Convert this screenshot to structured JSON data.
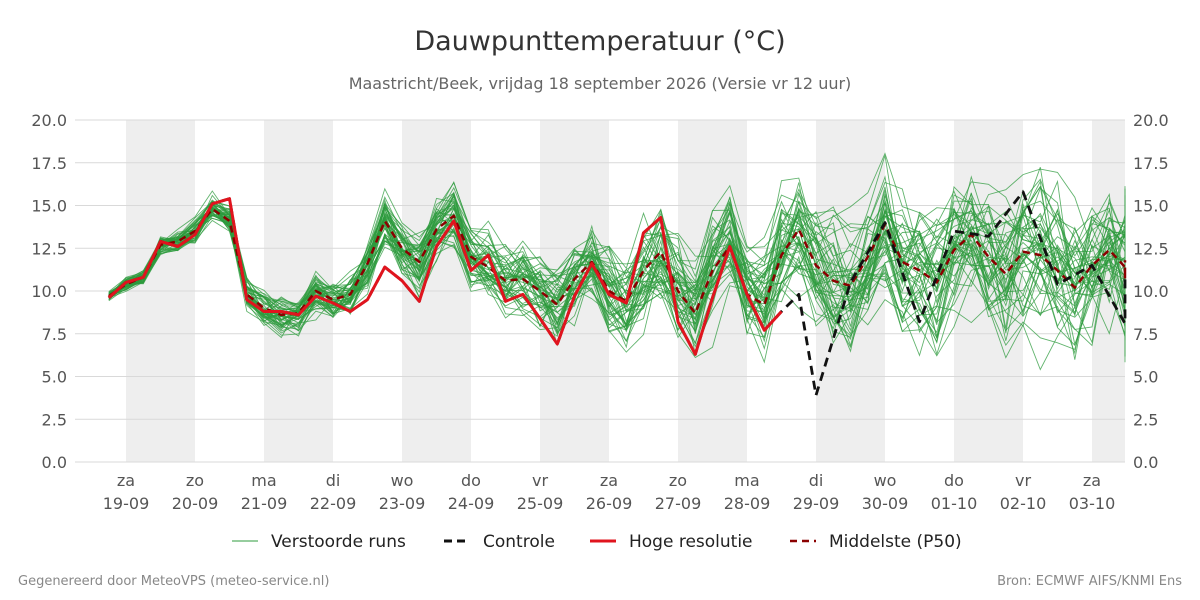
{
  "chart_data": {
    "type": "line",
    "title": "Dauwpunttemperatuur (°C)",
    "subtitle": "Maastricht/Beek, vrijdag 18 september 2026 (Versie vr 12 uur)",
    "ylim": [
      0,
      20
    ],
    "yticks": [
      "0.0",
      "2.5",
      "5.0",
      "7.5",
      "10.0",
      "12.5",
      "15.0",
      "17.5",
      "20.0"
    ],
    "xlim": [
      -0.1,
      15.0
    ],
    "day_ticks": [
      {
        "day": "za",
        "date": "19-09"
      },
      {
        "day": "zo",
        "date": "20-09"
      },
      {
        "day": "ma",
        "date": "21-09"
      },
      {
        "day": "di",
        "date": "22-09"
      },
      {
        "day": "wo",
        "date": "23-09"
      },
      {
        "day": "do",
        "date": "24-09"
      },
      {
        "day": "vr",
        "date": "25-09"
      },
      {
        "day": "za",
        "date": "26-09"
      },
      {
        "day": "zo",
        "date": "27-09"
      },
      {
        "day": "ma",
        "date": "28-09"
      },
      {
        "day": "di",
        "date": "29-09"
      },
      {
        "day": "wo",
        "date": "30-09"
      },
      {
        "day": "do",
        "date": "01-10"
      },
      {
        "day": "vr",
        "date": "02-10"
      },
      {
        "day": "za",
        "date": "03-10"
      }
    ],
    "grid": true,
    "legend_position": "bottom",
    "series": [
      {
        "name": "Controle",
        "color": "#111111",
        "style": "dashed",
        "x": [
          -0.25,
          0,
          0.25,
          0.5,
          0.75,
          1.0,
          1.25,
          1.5,
          1.75,
          2.0,
          2.25,
          2.5,
          2.75,
          3.0,
          3.25,
          3.5,
          3.75,
          4.0,
          4.25,
          4.5,
          4.75,
          5.0,
          5.25,
          5.5,
          5.75,
          6.0,
          6.25,
          6.5,
          6.75,
          7.0,
          7.25,
          7.5,
          7.75,
          8.0,
          8.25,
          8.5,
          8.75,
          9.0,
          9.25,
          9.5,
          9.75,
          10.0,
          10.5,
          11.0,
          11.5,
          12.0,
          12.5,
          13.0,
          13.5,
          14.0,
          14.5,
          15.0
        ],
        "values": [
          9.6,
          10.5,
          10.8,
          12.9,
          12.6,
          13.3,
          15.1,
          15.4,
          9.5,
          8.8,
          8.8,
          8.6,
          9.7,
          9.3,
          8.8,
          9.5,
          11.4,
          10.6,
          9.4,
          12.6,
          14.1,
          11.2,
          12.1,
          9.4,
          9.8,
          8.4,
          6.9,
          9.7,
          11.6,
          9.8,
          9.3,
          13.4,
          14.3,
          8.2,
          6.3,
          9.6,
          12.6,
          9.8,
          7.7,
          8.8,
          9.8,
          3.9,
          10.5,
          14.0,
          8.2,
          13.5,
          13.2,
          15.8,
          10.4,
          11.5,
          8.1,
          11.0
        ]
      },
      {
        "name": "Hoge resolutie",
        "color": "#e0141e",
        "style": "solid",
        "x": [
          -0.25,
          0,
          0.25,
          0.5,
          0.75,
          1.0,
          1.25,
          1.5,
          1.75,
          2.0,
          2.25,
          2.5,
          2.75,
          3.0,
          3.25,
          3.5,
          3.75,
          4.0,
          4.25,
          4.5,
          4.75,
          5.0,
          5.25,
          5.5,
          5.75,
          6.0,
          6.25,
          6.5,
          6.75,
          7.0,
          7.25,
          7.5,
          7.75,
          8.0,
          8.25,
          8.5,
          8.75,
          9.0,
          9.25,
          9.5
        ],
        "values": [
          9.6,
          10.5,
          10.8,
          12.9,
          12.6,
          13.3,
          15.1,
          15.4,
          9.5,
          8.8,
          8.8,
          8.6,
          9.7,
          9.3,
          8.8,
          9.5,
          11.4,
          10.6,
          9.4,
          12.6,
          14.1,
          11.2,
          12.1,
          9.4,
          9.8,
          8.4,
          6.9,
          9.7,
          11.6,
          9.8,
          9.3,
          13.4,
          14.3,
          8.2,
          6.3,
          9.6,
          12.6,
          9.8,
          7.7,
          8.8
        ]
      },
      {
        "name": "Middelste (P50)",
        "color": "#8b0000",
        "style": "dashed",
        "x": [
          -0.25,
          0,
          0.25,
          0.5,
          0.75,
          1.0,
          1.25,
          1.5,
          1.75,
          2.0,
          2.25,
          2.5,
          2.75,
          3.0,
          3.25,
          3.5,
          3.75,
          4.0,
          4.25,
          4.5,
          4.75,
          5.0,
          5.25,
          5.5,
          5.75,
          6.0,
          6.25,
          6.5,
          6.75,
          7.0,
          7.25,
          7.5,
          7.75,
          8.0,
          8.25,
          8.5,
          8.75,
          9.0,
          9.25,
          9.5,
          9.75,
          10.0,
          10.25,
          10.5,
          10.75,
          11.0,
          11.25,
          11.5,
          11.75,
          12.0,
          12.25,
          12.5,
          12.75,
          13.0,
          13.25,
          13.5,
          13.75,
          14.0,
          14.25,
          14.5,
          14.75,
          15.0
        ],
        "values": [
          9.7,
          10.4,
          10.8,
          12.7,
          12.9,
          13.5,
          14.8,
          14.1,
          9.8,
          9.0,
          8.6,
          8.7,
          10.0,
          9.5,
          9.8,
          11.6,
          14.1,
          12.5,
          11.7,
          13.6,
          14.4,
          12.0,
          11.4,
          10.6,
          10.7,
          10.0,
          9.2,
          10.7,
          11.7,
          10.0,
          9.4,
          11.2,
          12.3,
          10.0,
          8.7,
          11.2,
          12.6,
          9.8,
          9.2,
          12.1,
          13.6,
          11.5,
          10.6,
          10.3,
          12.0,
          13.9,
          11.7,
          11.2,
          10.5,
          12.4,
          13.3,
          12.0,
          11.0,
          12.3,
          12.1,
          11.2,
          10.2,
          11.5,
          12.4,
          11.4,
          10.7,
          11.8
        ]
      }
    ]
  },
  "legend": {
    "perturbed": "Verstoorde runs",
    "control": "Controle",
    "highres": "Hoge resolutie",
    "median": "Middelste (P50)"
  },
  "footer": {
    "left": "Gegenereerd door MeteoVPS (meteo-service.nl)",
    "right": "Bron: ECMWF AIFS/KNMI Ens"
  },
  "colors": {
    "ensemble": "#2e9b3e",
    "shade": "#eeeeee",
    "grid": "#d9d9d9"
  }
}
